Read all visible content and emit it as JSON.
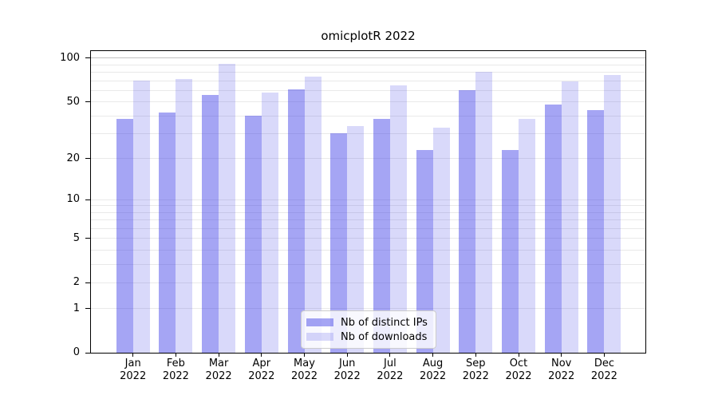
{
  "chart_data": {
    "type": "bar",
    "title": "omicplotR 2022",
    "year_label": "2022",
    "categories": [
      "Jan",
      "Feb",
      "Mar",
      "Apr",
      "May",
      "Jun",
      "Jul",
      "Aug",
      "Sep",
      "Oct",
      "Nov",
      "Dec"
    ],
    "series": [
      {
        "name": "Nb of distinct IPs",
        "color": "#a5a5f4",
        "fill": "rgba(64,64,232,0.47)",
        "values": [
          38,
          42,
          56,
          40,
          61,
          30,
          38,
          23,
          60,
          23,
          48,
          44
        ]
      },
      {
        "name": "Nb of downloads",
        "color": "#d9d9fa",
        "fill": "rgba(64,64,232,0.20)",
        "values": [
          70,
          72,
          92,
          58,
          75,
          34,
          65,
          33,
          81,
          38,
          69,
          77
        ]
      }
    ],
    "yscale": "log1p",
    "ylim": [
      0,
      112
    ],
    "yticks": [
      0,
      1,
      2,
      5,
      10,
      20,
      50,
      100
    ],
    "minor_gridlines": [
      3,
      4,
      6,
      7,
      8,
      9,
      30,
      40,
      60,
      70,
      80,
      90
    ],
    "grid": true,
    "grid_color": "#e9e9e9",
    "grid_color_top": "#c0c0c0",
    "legend_position": "lower center",
    "axis_color": "#000000",
    "background_color": "#ffffff",
    "xlabel": "",
    "ylabel": ""
  }
}
